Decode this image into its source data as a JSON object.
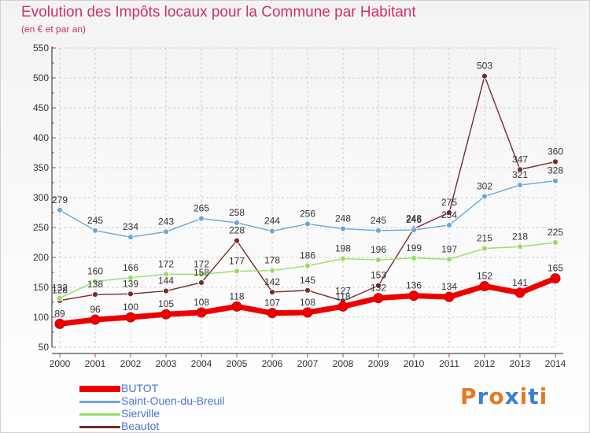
{
  "chart_data": {
    "type": "line",
    "title": "Evolution des Impôts locaux pour la Commune par Habitant",
    "subtitle": "(en € et par an)",
    "x": [
      "2000",
      "2001",
      "2002",
      "2003",
      "2004",
      "2005",
      "2006",
      "2007",
      "2008",
      "2009",
      "2010",
      "2011",
      "2012",
      "2013",
      "2014"
    ],
    "ylim": [
      50,
      550
    ],
    "yticks": [
      "50",
      "100",
      "150",
      "200",
      "250",
      "300",
      "350",
      "400",
      "450",
      "500",
      "550"
    ],
    "grid": true,
    "legend_position": "bottom-left",
    "series": [
      {
        "name": "BUTOT",
        "color": "#ee0000",
        "values": [
          89,
          96,
          100,
          105,
          108,
          118,
          107,
          108,
          118,
          132,
          136,
          134,
          152,
          141,
          165
        ]
      },
      {
        "name": "Saint-Ouen-du-Breuil",
        "color": "#6ea6d6",
        "values": [
          279,
          245,
          234,
          243,
          265,
          258,
          244,
          256,
          248,
          245,
          246,
          254,
          302,
          321,
          328
        ]
      },
      {
        "name": "Sierville",
        "color": "#99dd66",
        "values": [
          132,
          160,
          166,
          172,
          172,
          177,
          178,
          186,
          198,
          196,
          199,
          197,
          215,
          218,
          225
        ]
      },
      {
        "name": "Beautot",
        "color": "#7a2a2a",
        "values": [
          128,
          138,
          139,
          144,
          158,
          228,
          142,
          145,
          127,
          153,
          248,
          275,
          503,
          347,
          360
        ]
      }
    ]
  },
  "logo": {
    "text": "Proxiti",
    "colors": [
      "#e87722",
      "#3a7fd5",
      "#e87722",
      "#3a7fd5",
      "#e87722",
      "#3a7fd5",
      "#e87722"
    ]
  }
}
